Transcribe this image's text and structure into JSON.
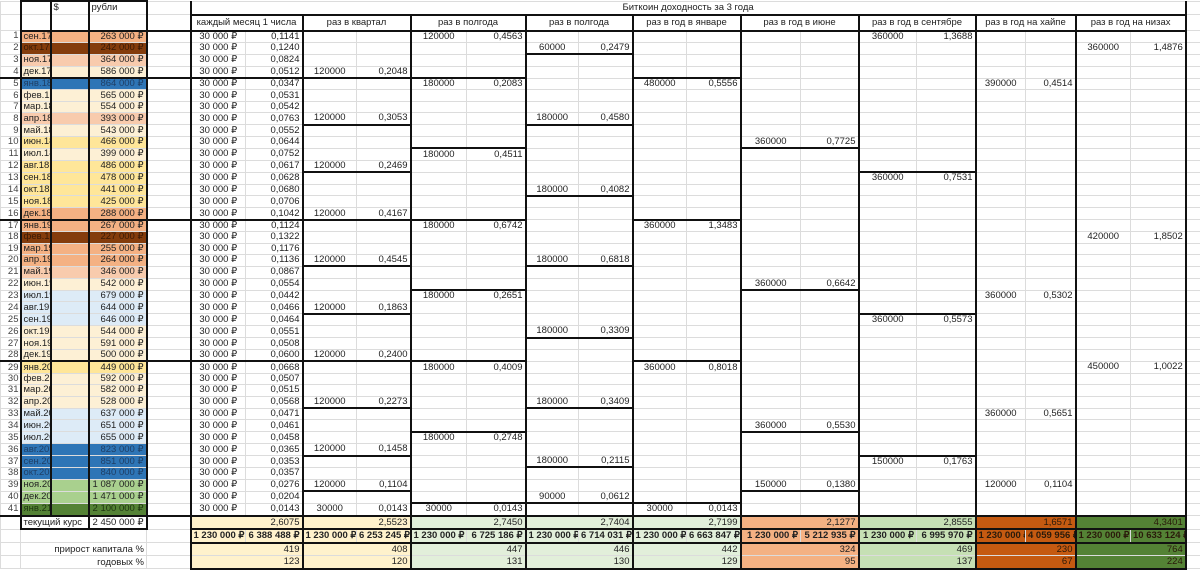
{
  "sheet": {
    "title": "Биткоин доходность за 3 года",
    "col_usd": "$",
    "col_rub": "рубли",
    "current_rate_label": "текущий курс",
    "current_rate": "2 450 000 ₽",
    "capital_growth_label": "прирост капитала %",
    "annual_label": "годовых %"
  },
  "months": [
    {
      "n": "1",
      "label": "сен.17",
      "rub": "263 000 ₽",
      "color": "#f4b183"
    },
    {
      "n": "2",
      "label": "окт.17",
      "rub": "242 000 ₽",
      "color": "#843c0c"
    },
    {
      "n": "3",
      "label": "ноя.17",
      "rub": "364 000 ₽",
      "color": "#f8cbad"
    },
    {
      "n": "4",
      "label": "дек.17",
      "rub": "586 000 ₽",
      "color": "#fdf0d5"
    },
    {
      "n": "5",
      "label": "янв.18",
      "rub": "864 000 ₽",
      "color": "#2e75b6"
    },
    {
      "n": "6",
      "label": "фев.18",
      "rub": "565 000 ₽",
      "color": "#fdf0d5"
    },
    {
      "n": "7",
      "label": "мар.18",
      "rub": "554 000 ₽",
      "color": "#fdf0d5"
    },
    {
      "n": "8",
      "label": "апр.18",
      "rub": "393 000 ₽",
      "color": "#f8cbad"
    },
    {
      "n": "9",
      "label": "май.18",
      "rub": "543 000 ₽",
      "color": "#fdf0d5"
    },
    {
      "n": "10",
      "label": "июн.18",
      "rub": "466 000 ₽",
      "color": "#ffe699"
    },
    {
      "n": "11",
      "label": "июл.18",
      "rub": "399 000 ₽",
      "color": "#fdf0d5"
    },
    {
      "n": "12",
      "label": "авг.18",
      "rub": "486 000 ₽",
      "color": "#ffe699"
    },
    {
      "n": "13",
      "label": "сен.18",
      "rub": "478 000 ₽",
      "color": "#ffe699"
    },
    {
      "n": "14",
      "label": "окт.18",
      "rub": "441 000 ₽",
      "color": "#ffe699"
    },
    {
      "n": "15",
      "label": "ноя.18",
      "rub": "425 000 ₽",
      "color": "#ffe699"
    },
    {
      "n": "16",
      "label": "дек.18",
      "rub": "288 000 ₽",
      "color": "#f4b183"
    },
    {
      "n": "17",
      "label": "янв.19",
      "rub": "267 000 ₽",
      "color": "#f4b183"
    },
    {
      "n": "18",
      "label": "фев.19",
      "rub": "227 000 ₽",
      "color": "#843c0c"
    },
    {
      "n": "19",
      "label": "мар.19",
      "rub": "255 000 ₽",
      "color": "#f4b183"
    },
    {
      "n": "20",
      "label": "апр.19",
      "rub": "264 000 ₽",
      "color": "#f4b183"
    },
    {
      "n": "21",
      "label": "май.19",
      "rub": "346 000 ₽",
      "color": "#f8cbad"
    },
    {
      "n": "22",
      "label": "июн.19",
      "rub": "542 000 ₽",
      "color": "#fdf0d5"
    },
    {
      "n": "23",
      "label": "июл.19",
      "rub": "679 000 ₽",
      "color": "#ddebf7"
    },
    {
      "n": "24",
      "label": "авг.19",
      "rub": "644 000 ₽",
      "color": "#ddebf7"
    },
    {
      "n": "25",
      "label": "сен.19",
      "rub": "646 000 ₽",
      "color": "#ddebf7"
    },
    {
      "n": "26",
      "label": "окт.19",
      "rub": "544 000 ₽",
      "color": "#fdf0d5"
    },
    {
      "n": "27",
      "label": "ноя.19",
      "rub": "591 000 ₽",
      "color": "#fdf0d5"
    },
    {
      "n": "28",
      "label": "дек.19",
      "rub": "500 000 ₽",
      "color": "#fdf0d5"
    },
    {
      "n": "29",
      "label": "янв.20",
      "rub": "449 000 ₽",
      "color": "#ffe699"
    },
    {
      "n": "30",
      "label": "фев.20",
      "rub": "592 000 ₽",
      "color": "#fdf0d5"
    },
    {
      "n": "31",
      "label": "мар.20",
      "rub": "582 000 ₽",
      "color": "#fdf0d5"
    },
    {
      "n": "32",
      "label": "апр.20",
      "rub": "528 000 ₽",
      "color": "#fdf0d5"
    },
    {
      "n": "33",
      "label": "май.20",
      "rub": "637 000 ₽",
      "color": "#ddebf7"
    },
    {
      "n": "34",
      "label": "июн.20",
      "rub": "651 000 ₽",
      "color": "#ddebf7"
    },
    {
      "n": "35",
      "label": "июл.20",
      "rub": "655 000 ₽",
      "color": "#ddebf7"
    },
    {
      "n": "36",
      "label": "авг.20",
      "rub": "823 000 ₽",
      "color": "#2e75b6"
    },
    {
      "n": "37",
      "label": "сен.20",
      "rub": "851 000 ₽",
      "color": "#2e75b6"
    },
    {
      "n": "38",
      "label": "окт.20",
      "rub": "840 000 ₽",
      "color": "#2e75b6"
    },
    {
      "n": "39",
      "label": "ноя.20",
      "rub": "1 087 000 ₽",
      "color": "#a9d08e"
    },
    {
      "n": "40",
      "label": "дек.20",
      "rub": "1 471 000 ₽",
      "color": "#a9d08e"
    },
    {
      "n": "41",
      "label": "янв.21",
      "rub": "2 100 000 ₽",
      "color": "#548235"
    }
  ],
  "monthly": {
    "header": "каждый месяц 1 числа",
    "amount": "30 000 ₽",
    "ratios": [
      "0,1141",
      "0,1240",
      "0,0824",
      "0,0512",
      "0,0347",
      "0,0531",
      "0,0542",
      "0,0763",
      "0,0552",
      "0,0644",
      "0,0752",
      "0,0617",
      "0,0628",
      "0,0680",
      "0,0706",
      "0,1042",
      "0,1124",
      "0,1322",
      "0,1176",
      "0,1136",
      "0,0867",
      "0,0554",
      "0,0442",
      "0,0466",
      "0,0464",
      "0,0551",
      "0,0508",
      "0,0600",
      "0,0668",
      "0,0507",
      "0,0515",
      "0,0568",
      "0,0471",
      "0,0461",
      "0,0458",
      "0,0365",
      "0,0353",
      "0,0357",
      "0,0276",
      "0,0204",
      "0,0143"
    ],
    "summary": {
      "coef": "2,6075",
      "invested": "1 230 000 ₽",
      "final": "6 388 488 ₽",
      "growth": "419",
      "annual": "123",
      "color": "#fff2cc"
    }
  },
  "strategies": [
    {
      "header": "раз в квартал",
      "entries": [
        {
          "month": "дек.17",
          "amount": "120000",
          "ratio": "0,2048"
        },
        {
          "month": "апр.18",
          "amount": "120000",
          "ratio": "0,3053"
        },
        {
          "month": "авг.18",
          "amount": "120000",
          "ratio": "0,2469"
        },
        {
          "month": "дек.18",
          "amount": "120000",
          "ratio": "0,4167"
        },
        {
          "month": "апр.19",
          "amount": "120000",
          "ratio": "0,4545"
        },
        {
          "month": "авг.19",
          "amount": "120000",
          "ratio": "0,1863"
        },
        {
          "month": "дек.19",
          "amount": "120000",
          "ratio": "0,2400"
        },
        {
          "month": "апр.20",
          "amount": "120000",
          "ratio": "0,2273"
        },
        {
          "month": "авг.20",
          "amount": "120000",
          "ratio": "0,1458"
        },
        {
          "month": "ноя.20",
          "amount": "120000",
          "ratio": "0,1104"
        },
        {
          "month": "янв.21",
          "amount": "30000",
          "ratio": "0,0143"
        }
      ],
      "summary": {
        "coef": "2,5523",
        "invested": "1 230 000 ₽",
        "final": "6 253 245 ₽",
        "growth": "408",
        "annual": "120",
        "color": "#fff2cc"
      }
    },
    {
      "header": "раз в полгода",
      "entries": [
        {
          "month": "сен.17",
          "amount": "120000",
          "ratio": "0,4563"
        },
        {
          "month": "янв.18",
          "amount": "180000",
          "ratio": "0,2083"
        },
        {
          "month": "июл.18",
          "amount": "180000",
          "ratio": "0,4511"
        },
        {
          "month": "янв.19",
          "amount": "180000",
          "ratio": "0,6742"
        },
        {
          "month": "июл.19",
          "amount": "180000",
          "ratio": "0,2651"
        },
        {
          "month": "янв.20",
          "amount": "180000",
          "ratio": "0,4009"
        },
        {
          "month": "июл.20",
          "amount": "180000",
          "ratio": "0,2748"
        },
        {
          "month": "янв.21",
          "amount": "30000",
          "ratio": "0,0143"
        }
      ],
      "summary": {
        "coef": "2,7450",
        "invested": "1 230 000 ₽",
        "final": "6 725 186 ₽",
        "growth": "447",
        "annual": "131",
        "color": "#e2efda"
      }
    },
    {
      "header": "раз в полгода",
      "entries": [
        {
          "month": "окт.17",
          "amount": "60000",
          "ratio": "0,2479"
        },
        {
          "month": "апр.18",
          "amount": "180000",
          "ratio": "0,4580"
        },
        {
          "month": "окт.18",
          "amount": "180000",
          "ratio": "0,4082"
        },
        {
          "month": "апр.19",
          "amount": "180000",
          "ratio": "0,6818"
        },
        {
          "month": "окт.19",
          "amount": "180000",
          "ratio": "0,3309"
        },
        {
          "month": "апр.20",
          "amount": "180000",
          "ratio": "0,3409"
        },
        {
          "month": "сен.20",
          "amount": "180000",
          "ratio": "0,2115"
        },
        {
          "month": "дек.20",
          "amount": "90000",
          "ratio": "0,0612"
        }
      ],
      "summary": {
        "coef": "2,7404",
        "invested": "1 230 000 ₽",
        "final": "6 714 031 ₽",
        "growth": "446",
        "annual": "130",
        "color": "#e2efda"
      }
    },
    {
      "header": "раз в год в январе",
      "entries": [
        {
          "month": "янв.18",
          "amount": "480000",
          "ratio": "0,5556"
        },
        {
          "month": "янв.19",
          "amount": "360000",
          "ratio": "1,3483"
        },
        {
          "month": "янв.20",
          "amount": "360000",
          "ratio": "0,8018"
        },
        {
          "month": "янв.21",
          "amount": "30000",
          "ratio": "0,0143"
        }
      ],
      "summary": {
        "coef": "2,7199",
        "invested": "1 230 000 ₽",
        "final": "6 663 847 ₽",
        "growth": "442",
        "annual": "129",
        "color": "#e2efda"
      }
    },
    {
      "header": "раз в год в июне",
      "entries": [
        {
          "month": "июн.18",
          "amount": "360000",
          "ratio": "0,7725"
        },
        {
          "month": "июн.19",
          "amount": "360000",
          "ratio": "0,6642"
        },
        {
          "month": "июн.20",
          "amount": "360000",
          "ratio": "0,5530"
        },
        {
          "month": "ноя.20",
          "amount": "150000",
          "ratio": "0,1380"
        }
      ],
      "summary": {
        "coef": "2,1277",
        "invested": "1 230 000 ₽",
        "final": "5 212 935 ₽",
        "growth": "324",
        "annual": "95",
        "color": "#f4b183"
      }
    },
    {
      "header": "раз в год в сентябре",
      "entries": [
        {
          "month": "сен.17",
          "amount": "360000",
          "ratio": "1,3688"
        },
        {
          "month": "сен.18",
          "amount": "360000",
          "ratio": "0,7531"
        },
        {
          "month": "сен.19",
          "amount": "360000",
          "ratio": "0,5573"
        },
        {
          "month": "сен.20",
          "amount": "150000",
          "ratio": "0,1763"
        }
      ],
      "summary": {
        "coef": "2,8555",
        "invested": "1 230 000 ₽",
        "final": "6 995 970 ₽",
        "growth": "469",
        "annual": "137",
        "color": "#c6e0b4"
      }
    },
    {
      "header": "раз в год на хайпе",
      "entries": [
        {
          "month": "янв.18",
          "amount": "390000",
          "ratio": "0,4514"
        },
        {
          "month": "июл.19",
          "amount": "360000",
          "ratio": "0,5302"
        },
        {
          "month": "май.20",
          "amount": "360000",
          "ratio": "0,5651"
        },
        {
          "month": "ноя.20",
          "amount": "120000",
          "ratio": "0,1104"
        }
      ],
      "summary": {
        "coef": "1,6571",
        "invested": "1 230 000 ₽",
        "final": "4 059 956 ₽",
        "growth": "230",
        "annual": "67",
        "color": "#c55a11"
      }
    },
    {
      "header": "раз в год на низах",
      "entries": [
        {
          "month": "окт.17",
          "amount": "360000",
          "ratio": "1,4876"
        },
        {
          "month": "фев.19",
          "amount": "420000",
          "ratio": "1,8502"
        },
        {
          "month": "янв.20",
          "amount": "450000",
          "ratio": "1,0022"
        }
      ],
      "summary": {
        "coef": "4,3401",
        "invested": "1 230 000 ₽",
        "final": "10 633 124 ₽",
        "growth": "764",
        "annual": "224",
        "color": "#548235"
      }
    }
  ]
}
